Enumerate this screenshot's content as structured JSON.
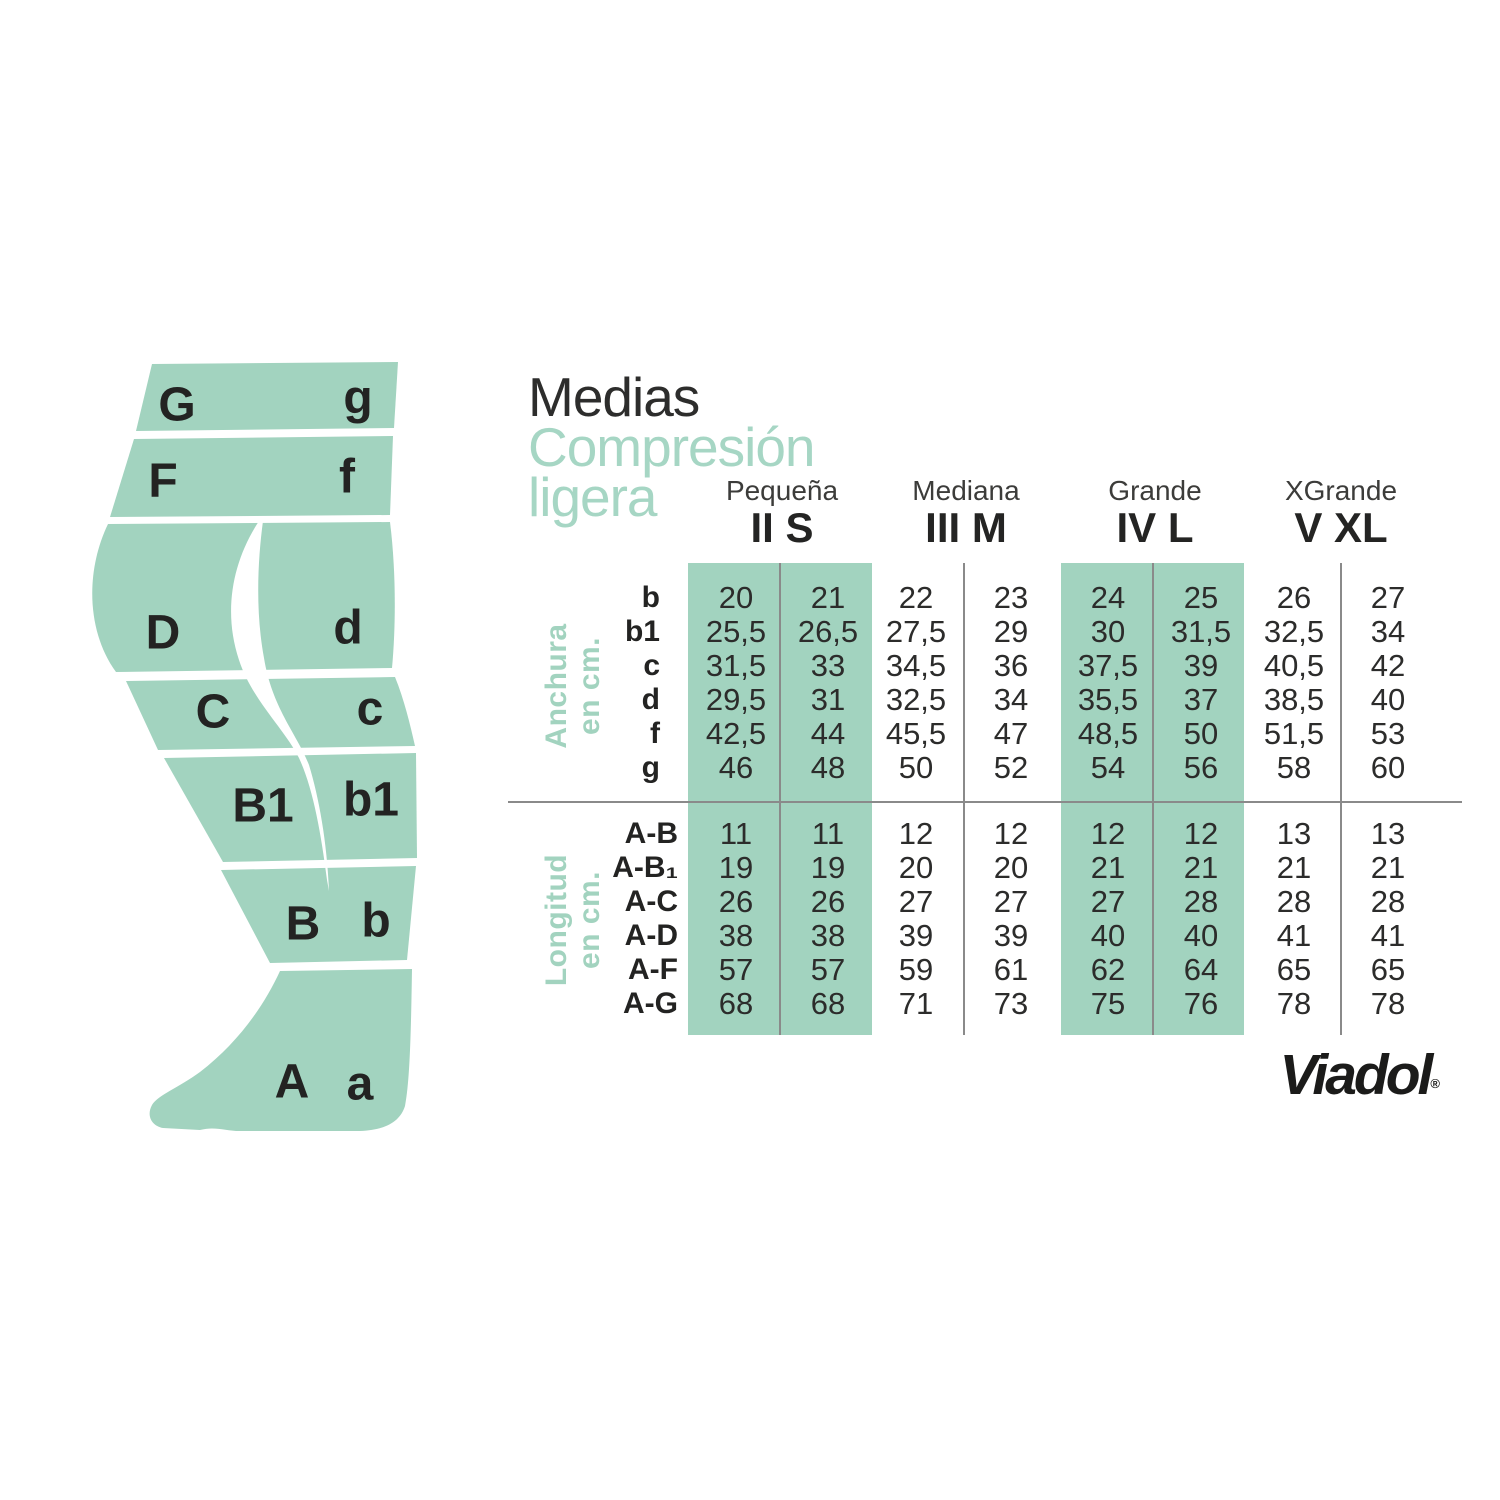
{
  "title": {
    "line1": "Medias",
    "line2": "Compresión",
    "line3": "ligera"
  },
  "brand": {
    "name": "Viadol",
    "registered": "®"
  },
  "diagram": {
    "zones_left": [
      "G",
      "F",
      "D",
      "C",
      "B1",
      "B",
      "A"
    ],
    "zones_right": [
      "g",
      "f",
      "d",
      "c",
      "b1",
      "b",
      "a"
    ]
  },
  "chart_data": {
    "type": "table",
    "title": "Medias Compresión ligera",
    "sizes": [
      {
        "name": "Pequeña",
        "code": "II S",
        "highlighted": true
      },
      {
        "name": "Mediana",
        "code": "III M",
        "highlighted": false
      },
      {
        "name": "Grande",
        "code": "IV L",
        "highlighted": true
      },
      {
        "name": "XGrande",
        "code": "V XL",
        "highlighted": false
      }
    ],
    "columns_per_size": 2,
    "sections": [
      {
        "label_line1": "Anchura",
        "label_line2": "en cm.",
        "rows": [
          {
            "label": "b",
            "values": [
              "20",
              "21",
              "22",
              "23",
              "24",
              "25",
              "26",
              "27"
            ]
          },
          {
            "label": "b1",
            "values": [
              "25,5",
              "26,5",
              "27,5",
              "29",
              "30",
              "31,5",
              "32,5",
              "34"
            ]
          },
          {
            "label": "c",
            "values": [
              "31,5",
              "33",
              "34,5",
              "36",
              "37,5",
              "39",
              "40,5",
              "42"
            ]
          },
          {
            "label": "d",
            "values": [
              "29,5",
              "31",
              "32,5",
              "34",
              "35,5",
              "37",
              "38,5",
              "40"
            ]
          },
          {
            "label": "f",
            "values": [
              "42,5",
              "44",
              "45,5",
              "47",
              "48,5",
              "50",
              "51,5",
              "53"
            ]
          },
          {
            "label": "g",
            "values": [
              "46",
              "48",
              "50",
              "52",
              "54",
              "56",
              "58",
              "60"
            ]
          }
        ]
      },
      {
        "label_line1": "Longitud",
        "label_line2": "en cm.",
        "rows": [
          {
            "label": "A-B",
            "values": [
              "11",
              "11",
              "12",
              "12",
              "12",
              "12",
              "13",
              "13"
            ]
          },
          {
            "label": "A-B₁",
            "values": [
              "19",
              "19",
              "20",
              "20",
              "21",
              "21",
              "21",
              "21"
            ]
          },
          {
            "label": "A-C",
            "values": [
              "26",
              "26",
              "27",
              "27",
              "27",
              "28",
              "28",
              "28"
            ]
          },
          {
            "label": "A-D",
            "values": [
              "38",
              "38",
              "39",
              "39",
              "40",
              "40",
              "41",
              "41"
            ]
          },
          {
            "label": "A-F",
            "values": [
              "57",
              "57",
              "59",
              "61",
              "62",
              "64",
              "65",
              "65"
            ]
          },
          {
            "label": "A-G",
            "values": [
              "68",
              "68",
              "71",
              "73",
              "75",
              "76",
              "78",
              "78"
            ]
          }
        ]
      }
    ]
  },
  "colors": {
    "green_fill": "#a2d3bf",
    "green_text": "#a6d6c4",
    "dark_text": "#2c2c2b",
    "line_gray": "#8a8a8a"
  }
}
